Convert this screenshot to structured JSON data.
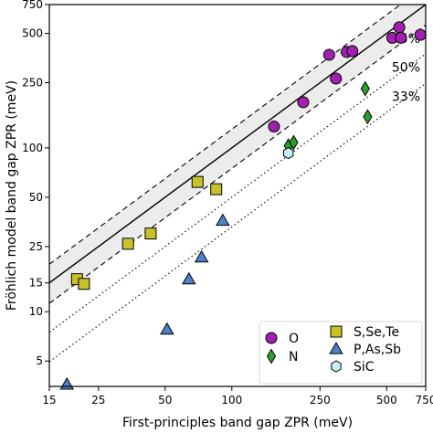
{
  "chart_data": {
    "type": "scatter",
    "title": "",
    "xlabel": "First-principles band gap ZPR (meV)",
    "ylabel": "Fröhlich model band gap ZPR (meV)",
    "xscale": "log",
    "yscale": "log",
    "xlim": [
      15,
      750
    ],
    "ylim": [
      3.5,
      750
    ],
    "x_ticks": [
      15,
      25,
      50,
      100,
      250,
      500,
      750
    ],
    "x_tick_labels": [
      "15",
      "25",
      "50",
      "100",
      "250",
      "500",
      "750"
    ],
    "y_ticks": [
      5,
      10,
      15,
      25,
      50,
      100,
      250,
      500,
      750
    ],
    "y_tick_labels": [
      "5",
      "10",
      "15",
      "25",
      "50",
      "100",
      "250",
      "500",
      "750"
    ],
    "grid": false,
    "legend_position": "bottom-right",
    "reference_lines": [
      {
        "kind": "identity",
        "style": "solid"
      },
      {
        "kind": "band",
        "factor_low": 0.75,
        "factor_high": 1.3,
        "style": "dashed",
        "fill": "#ececec"
      },
      {
        "kind": "ratio",
        "factor": 0.75,
        "label": "75%",
        "style": "dashed"
      },
      {
        "kind": "ratio",
        "factor": 0.5,
        "label": "50%",
        "style": "dotted"
      },
      {
        "kind": "ratio",
        "factor": 0.33,
        "label": "33%",
        "style": "dotted"
      }
    ],
    "series": [
      {
        "name": "O",
        "marker": "circle",
        "color": "#a020b0",
        "points": [
          [
            155,
            135
          ],
          [
            210,
            190
          ],
          [
            275,
            370
          ],
          [
            295,
            265
          ],
          [
            330,
            385
          ],
          [
            350,
            390
          ],
          [
            530,
            470
          ],
          [
            570,
            545
          ],
          [
            580,
            470
          ],
          [
            710,
            490
          ]
        ]
      },
      {
        "name": "N",
        "marker": "diamond",
        "color": "#2ca02c",
        "points": [
          [
            180,
            103
          ],
          [
            190,
            108
          ],
          [
            400,
            230
          ],
          [
            410,
            155
          ]
        ]
      },
      {
        "name": "S,Se,Te",
        "marker": "square",
        "color": "#c8c22a",
        "points": [
          [
            20,
            15.8
          ],
          [
            21.5,
            14.8
          ],
          [
            34,
            26
          ],
          [
            43,
            30
          ],
          [
            70,
            62
          ],
          [
            85,
            56
          ]
        ]
      },
      {
        "name": "P,As,Sb",
        "marker": "triangle",
        "color": "#4f80c8",
        "points": [
          [
            18,
            3.6
          ],
          [
            51,
            7.8
          ],
          [
            64,
            15.8
          ],
          [
            73,
            21.5
          ],
          [
            91,
            36
          ]
        ]
      },
      {
        "name": "SiC",
        "marker": "hexagon",
        "color": "#c8f0f8",
        "points": [
          [
            180,
            93
          ]
        ]
      }
    ]
  }
}
